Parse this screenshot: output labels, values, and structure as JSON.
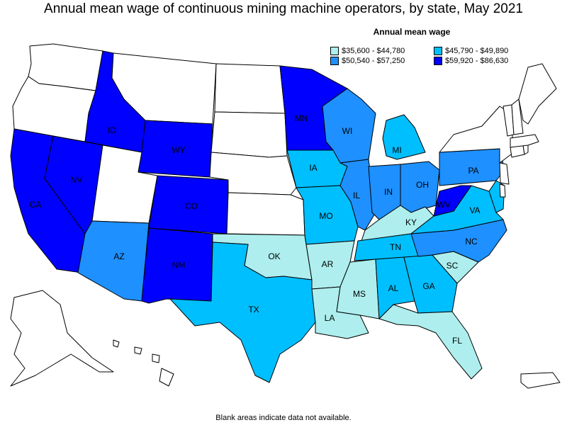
{
  "title": "Annual mean wage of continuous mining machine operators, by state, May 2021",
  "legend": {
    "title": "Annual mean wage",
    "bins": [
      {
        "label": "$35,600 - $44,780",
        "color": "#aeeeee"
      },
      {
        "label": "$45,790 - $49,890",
        "color": "#00bfff"
      },
      {
        "label": "$50,540 - $57,250",
        "color": "#1e90ff"
      },
      {
        "label": "$59,920 - $86,630",
        "color": "#0000ff"
      }
    ]
  },
  "no_data_color": "#ffffff",
  "footnote": "Blank areas indicate data not available.",
  "states": [
    {
      "abbr": "WA",
      "label": "",
      "bin": null
    },
    {
      "abbr": "OR",
      "label": "",
      "bin": null
    },
    {
      "abbr": "CA",
      "label": "CA",
      "bin": 3
    },
    {
      "abbr": "NV",
      "label": "NV",
      "bin": 3
    },
    {
      "abbr": "ID",
      "label": "ID",
      "bin": 3
    },
    {
      "abbr": "MT",
      "label": "",
      "bin": null
    },
    {
      "abbr": "WY",
      "label": "WY",
      "bin": 3
    },
    {
      "abbr": "UT",
      "label": "",
      "bin": null
    },
    {
      "abbr": "AZ",
      "label": "AZ",
      "bin": 2
    },
    {
      "abbr": "CO",
      "label": "CO",
      "bin": 3
    },
    {
      "abbr": "NM",
      "label": "NM",
      "bin": 3
    },
    {
      "abbr": "ND",
      "label": "",
      "bin": null
    },
    {
      "abbr": "SD",
      "label": "",
      "bin": null
    },
    {
      "abbr": "NE",
      "label": "",
      "bin": null
    },
    {
      "abbr": "KS",
      "label": "",
      "bin": null
    },
    {
      "abbr": "OK",
      "label": "OK",
      "bin": 0
    },
    {
      "abbr": "TX",
      "label": "TX",
      "bin": 1
    },
    {
      "abbr": "MN",
      "label": "MN",
      "bin": 3
    },
    {
      "abbr": "IA",
      "label": "IA",
      "bin": 1
    },
    {
      "abbr": "MO",
      "label": "MO",
      "bin": 1
    },
    {
      "abbr": "AR",
      "label": "AR",
      "bin": 0
    },
    {
      "abbr": "LA",
      "label": "LA",
      "bin": 0
    },
    {
      "abbr": "WI",
      "label": "WI",
      "bin": 2
    },
    {
      "abbr": "IL",
      "label": "IL",
      "bin": 2
    },
    {
      "abbr": "MI",
      "label": "MI",
      "bin": 1
    },
    {
      "abbr": "IN",
      "label": "IN",
      "bin": 2
    },
    {
      "abbr": "OH",
      "label": "OH",
      "bin": 2
    },
    {
      "abbr": "KY",
      "label": "KY",
      "bin": 0
    },
    {
      "abbr": "TN",
      "label": "TN",
      "bin": 1
    },
    {
      "abbr": "MS",
      "label": "MS",
      "bin": 0
    },
    {
      "abbr": "AL",
      "label": "AL",
      "bin": 1
    },
    {
      "abbr": "GA",
      "label": "GA",
      "bin": 1
    },
    {
      "abbr": "FL",
      "label": "FL",
      "bin": 0
    },
    {
      "abbr": "SC",
      "label": "SC",
      "bin": 0
    },
    {
      "abbr": "NC",
      "label": "NC",
      "bin": 2
    },
    {
      "abbr": "VA",
      "label": "VA",
      "bin": 1
    },
    {
      "abbr": "WV",
      "label": "WV",
      "bin": 3
    },
    {
      "abbr": "PA",
      "label": "PA",
      "bin": 2
    },
    {
      "abbr": "MD",
      "label": "",
      "bin": 1
    },
    {
      "abbr": "DE",
      "label": "",
      "bin": null
    },
    {
      "abbr": "NJ",
      "label": "",
      "bin": null
    },
    {
      "abbr": "NY",
      "label": "",
      "bin": null
    },
    {
      "abbr": "CT",
      "label": "",
      "bin": null
    },
    {
      "abbr": "RI",
      "label": "",
      "bin": null
    },
    {
      "abbr": "MA",
      "label": "",
      "bin": null
    },
    {
      "abbr": "VT",
      "label": "",
      "bin": null
    },
    {
      "abbr": "NH",
      "label": "",
      "bin": null
    },
    {
      "abbr": "ME",
      "label": "",
      "bin": null
    },
    {
      "abbr": "AK",
      "label": "",
      "bin": null
    },
    {
      "abbr": "HI",
      "label": "",
      "bin": null
    },
    {
      "abbr": "PR",
      "label": "",
      "bin": null
    }
  ]
}
